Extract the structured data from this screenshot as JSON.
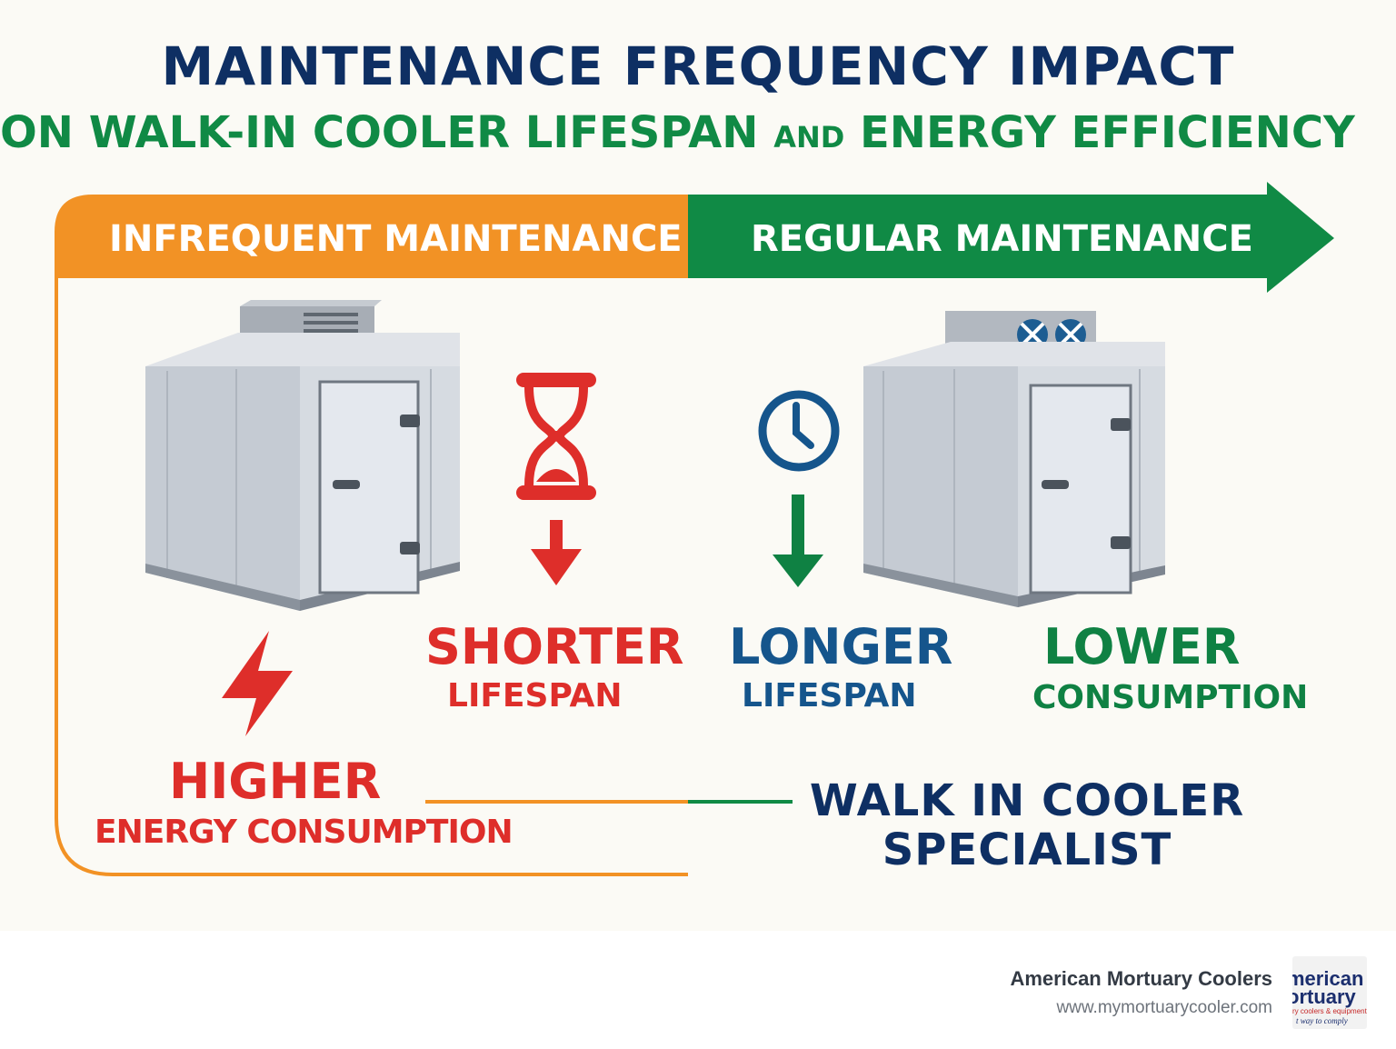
{
  "header": {
    "title": "MAINTENANCE FREQUENCY IMPACT",
    "subtitle_part1": "ON WALK-IN COOLER LIFESPAN",
    "subtitle_part2": "AND",
    "subtitle_part3": "ENERGY EFFICIENCY"
  },
  "banner": {
    "left_label": "INFREQUENT MAINTENANCE",
    "right_label": "REGULAR MAINTENANCE"
  },
  "effects": {
    "shorter_big": "SHORTER",
    "shorter_small": "LIFESPAN",
    "longer_big": "LONGER",
    "longer_small": "LIFESPAN",
    "lower_big": "LOWER",
    "lower_small": "CONSUMPTION",
    "higher_big": "HIGHER",
    "higher_small": "ENERGY CONSUMPTION"
  },
  "specialist": {
    "line1": "WALK IN COOLER",
    "line2": "SPECIALIST"
  },
  "footer": {
    "brand_name": "American Mortuary Coolers",
    "brand_url": "www.mymortuarycooler.com",
    "logo_line1": "merican",
    "logo_line2": "ortuary",
    "logo_line3": "ry coolers & equipment",
    "logo_line4": "t way to comply"
  },
  "colors": {
    "orange": "#f29225",
    "green": "#108a45",
    "red": "#de2e2a",
    "blue": "#15558c",
    "navy": "#0e2f63"
  },
  "icons": [
    "hourglass-icon",
    "clock-icon",
    "lightning-icon",
    "down-arrow-icon",
    "walk-in-cooler-icon"
  ]
}
